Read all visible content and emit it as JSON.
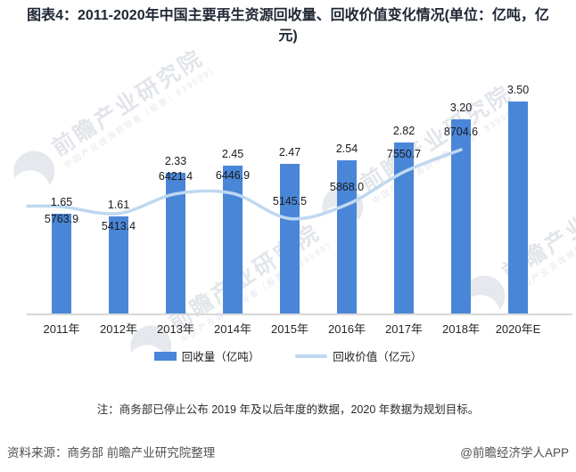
{
  "title": "图表4：2011-2020年中国主要再生资源回收量、回收价值变化情况(单位：亿吨，亿元)",
  "chart_data": {
    "type": "combo_bar_line",
    "categories": [
      "2011年",
      "2012年",
      "2013年",
      "2014年",
      "2015年",
      "2016年",
      "2017年",
      "2018年",
      "2020年E"
    ],
    "series": [
      {
        "name": "回收量（亿吨）",
        "type": "bar",
        "values": [
          1.65,
          1.61,
          2.33,
          2.45,
          2.47,
          2.54,
          2.82,
          3.2,
          3.5
        ],
        "labels": [
          "1.65",
          "1.61",
          "2.33",
          "2.45",
          "2.47",
          "2.54",
          "2.82",
          "3.20",
          "3.50"
        ]
      },
      {
        "name": "回收价值（亿元）",
        "type": "line",
        "values": [
          5763.9,
          5413.4,
          6421.4,
          6446.9,
          5145.5,
          5868.0,
          7550.7,
          8704.6,
          null
        ],
        "labels": [
          "5763.9",
          "5413.4",
          "6421.4",
          "6446.9",
          "5145.5",
          "5868.0",
          "7550.7",
          "8704.6"
        ]
      }
    ],
    "legend_position": "bottom",
    "gridlines": false,
    "value_axis_visible": false
  },
  "legend": {
    "bar_label": "回收量（亿吨）",
    "line_label": "回收价值（亿元）"
  },
  "note": "注：商务部已停止公布 2019 年及以后年度的数据，2020 年数据为规划目标。",
  "source": "资料来源：商务部 前瞻产业研究院整理",
  "credit": "@前瞻经济学人APP",
  "watermark": {
    "main": "前瞻产业研究院",
    "sub": "中国产业咨询领导者（股票：839599）"
  },
  "colors": {
    "bar": "#4a86d8",
    "line": "#bfd8f0",
    "axis_line": "#d8d8d8",
    "title_text": "#202734"
  }
}
